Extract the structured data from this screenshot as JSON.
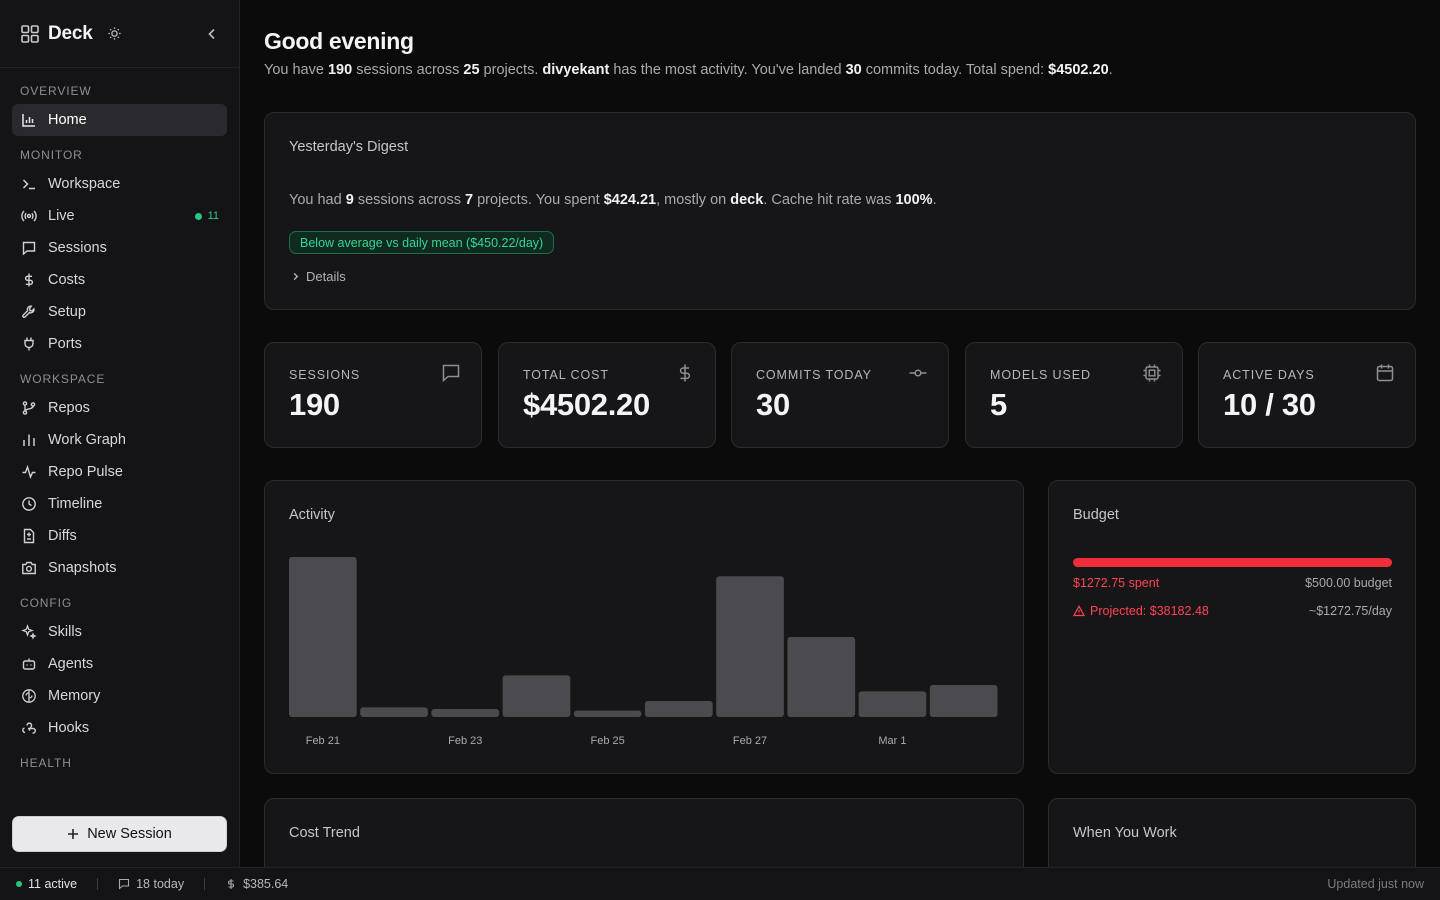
{
  "app": {
    "name": "Deck"
  },
  "sidebar": {
    "sections": [
      {
        "title": "Overview",
        "items": [
          {
            "label": "Home",
            "icon": "bar-chart-icon",
            "active": true
          }
        ]
      },
      {
        "title": "Monitor",
        "items": [
          {
            "label": "Workspace",
            "icon": "terminal-icon"
          },
          {
            "label": "Live",
            "icon": "radio-icon",
            "badge": "11"
          },
          {
            "label": "Sessions",
            "icon": "message-icon"
          },
          {
            "label": "Costs",
            "icon": "dollar-icon"
          },
          {
            "label": "Setup",
            "icon": "wrench-icon"
          },
          {
            "label": "Ports",
            "icon": "plug-icon"
          }
        ]
      },
      {
        "title": "Workspace",
        "items": [
          {
            "label": "Repos",
            "icon": "git-branch-icon"
          },
          {
            "label": "Work Graph",
            "icon": "bar-chart-icon"
          },
          {
            "label": "Repo Pulse",
            "icon": "pulse-icon"
          },
          {
            "label": "Timeline",
            "icon": "clock-icon"
          },
          {
            "label": "Diffs",
            "icon": "file-diff-icon"
          },
          {
            "label": "Snapshots",
            "icon": "camera-icon"
          }
        ]
      },
      {
        "title": "Config",
        "items": [
          {
            "label": "Skills",
            "icon": "sparkles-icon"
          },
          {
            "label": "Agents",
            "icon": "bot-icon"
          },
          {
            "label": "Memory",
            "icon": "brain-icon"
          },
          {
            "label": "Hooks",
            "icon": "webhook-icon"
          }
        ]
      },
      {
        "title": "Health",
        "items": []
      }
    ],
    "new_session_label": "New Session"
  },
  "header": {
    "greeting": "Good evening",
    "summary": {
      "p1": "You have ",
      "sessions": "190",
      "p2": " sessions across ",
      "projects": "25",
      "p3": " projects. ",
      "user": "divyekant",
      "p4": " has the most activity. You've landed ",
      "commits": "30",
      "p5": " commits today. Total spend: ",
      "spend": "$4502.20",
      "p6": "."
    }
  },
  "digest": {
    "title": "Yesterday's Digest",
    "t1": "You had ",
    "sessions": "9",
    "t2": " sessions across ",
    "projects": "7",
    "t3": " projects. You spent ",
    "spent": "$424.21",
    "t4": ", mostly on ",
    "top_project": "deck",
    "t5": ". Cache hit rate was ",
    "cache_rate": "100%",
    "t6": ".",
    "badge": "Below average vs daily mean ($450.22/day)",
    "details_label": "Details"
  },
  "stats": [
    {
      "label": "Sessions",
      "value": "190",
      "icon": "message-icon"
    },
    {
      "label": "Total Cost",
      "value": "$4502.20",
      "icon": "dollar-icon"
    },
    {
      "label": "Commits Today",
      "value": "30",
      "icon": "git-commit-icon"
    },
    {
      "label": "Models Used",
      "value": "5",
      "icon": "cpu-icon"
    },
    {
      "label": "Active Days",
      "value": "10 / 30",
      "icon": "calendar-icon"
    }
  ],
  "chart_data": {
    "type": "bar",
    "title": "Activity",
    "categories": [
      "Feb 21",
      "Feb 22",
      "Feb 23",
      "Feb 24",
      "Feb 25",
      "Feb 26",
      "Feb 27",
      "Feb 28",
      "Mar 1",
      "Mar 2"
    ],
    "tick_labels": [
      "Feb 21",
      "Feb 23",
      "Feb 25",
      "Feb 27",
      "Mar 1"
    ],
    "values": [
      100,
      6,
      5,
      26,
      4,
      10,
      88,
      50,
      16,
      20
    ],
    "ylim": [
      0,
      100
    ],
    "grid": false,
    "bar_color": "#4a4a4f"
  },
  "budget": {
    "title": "Budget",
    "spent": "$1272.75 spent",
    "budget": "$500.00 budget",
    "projected": "Projected: $38182.48",
    "daily": "~$1272.75/day",
    "fill_fraction": 1.0,
    "color": "#ef2e3a"
  },
  "cost_trend": {
    "title": "Cost Trend"
  },
  "when_you_work": {
    "title": "When You Work"
  },
  "statusbar": {
    "active": "11 active",
    "today": "18 today",
    "cost": "$385.64",
    "updated": "Updated just now"
  }
}
